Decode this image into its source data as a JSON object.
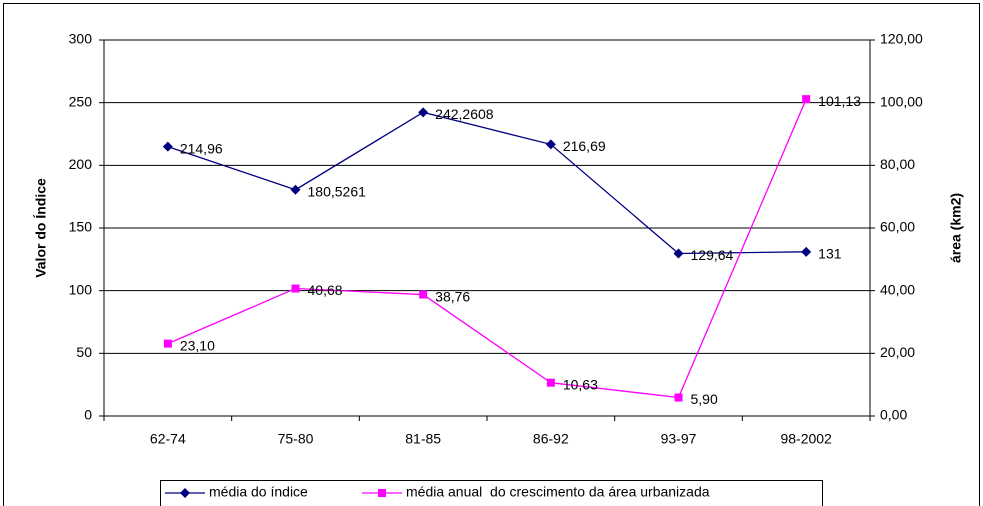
{
  "chart_data": {
    "type": "line",
    "categories": [
      "62-74",
      "75-80",
      "81-85",
      "86-92",
      "93-97",
      "98-2002"
    ],
    "y_label": "Valor do Índice",
    "y2_label": "área (km2)",
    "ylim": [
      0,
      300
    ],
    "yticks": [
      0,
      50,
      100,
      150,
      200,
      250,
      300
    ],
    "y2lim": [
      0,
      120
    ],
    "y2ticks": [
      {
        "value": 0,
        "label": "0,00"
      },
      {
        "value": 20,
        "label": "20,00"
      },
      {
        "value": 40,
        "label": "40,00"
      },
      {
        "value": 60,
        "label": "60,00"
      },
      {
        "value": 80,
        "label": "80,00"
      },
      {
        "value": 100,
        "label": "100,00"
      },
      {
        "value": 120,
        "label": "120,00"
      }
    ],
    "grid": true,
    "legend": "bottom",
    "series": [
      {
        "name": "média do índice",
        "color": "#000080",
        "marker": "diamond",
        "values": [
          214.96,
          180.5261,
          242.2608,
          216.69,
          129.64,
          131
        ],
        "value_labels": [
          "214,96",
          "180,5261",
          "242,2608",
          "216,69",
          "129,64",
          "131"
        ]
      },
      {
        "name": "média anual  do crescimento da área urbanizada",
        "color": "#ff00ff",
        "marker": "square",
        "axis": "y2",
        "values": [
          23.1,
          40.68,
          38.76,
          10.63,
          5.9,
          101.13
        ],
        "value_labels": [
          "23,10",
          "40,68",
          "38,76",
          "10,63",
          "5,90",
          "101,13"
        ]
      }
    ]
  }
}
